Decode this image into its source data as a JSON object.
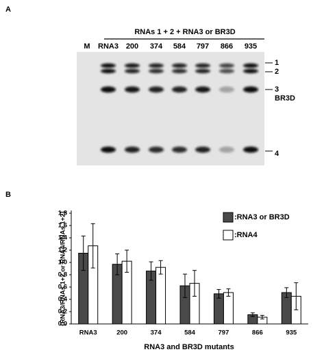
{
  "panel_labels": [
    "A",
    "B"
  ],
  "gel": {
    "header": "RNAs 1 + 2 + RNA3 or BR3D",
    "lanes": [
      "M",
      "RNA3",
      "200",
      "374",
      "584",
      "797",
      "866",
      "935"
    ],
    "band_labels": [
      "1",
      "2",
      "3",
      "BR3D",
      "4"
    ]
  },
  "chart_data": {
    "type": "bar",
    "x_label": "RNA3 and BR3D mutants",
    "y_label": "[RNA3/RNAs 1+2 or RNA4/RNAs 1+2]",
    "categories": [
      "RNA3",
      "200",
      "374",
      "584",
      "797",
      "866",
      "935"
    ],
    "series": [
      {
        "name": ":RNA3 or BR3D",
        "color": "#4a4a4a",
        "values": [
          1.15,
          0.97,
          0.86,
          0.62,
          0.49,
          0.15,
          0.51
        ],
        "errors": [
          0.28,
          0.17,
          0.15,
          0.19,
          0.07,
          0.03,
          0.08
        ]
      },
      {
        "name": ":RNA4",
        "color": "#ffffff",
        "values": [
          1.27,
          1.02,
          0.92,
          0.66,
          0.51,
          0.11,
          0.45
        ],
        "errors": [
          0.36,
          0.18,
          0.11,
          0.21,
          0.06,
          0.03,
          0.22
        ]
      }
    ],
    "ylim": [
      0,
      1.8
    ],
    "yticks": [
      {
        "value": 0,
        "label": "0.0"
      },
      0.2,
      0.4,
      0.6,
      0.8,
      {
        "value": 1,
        "label": "1.0"
      },
      1.2,
      1.4,
      1.6,
      1.8
    ],
    "legend": "upper right"
  }
}
